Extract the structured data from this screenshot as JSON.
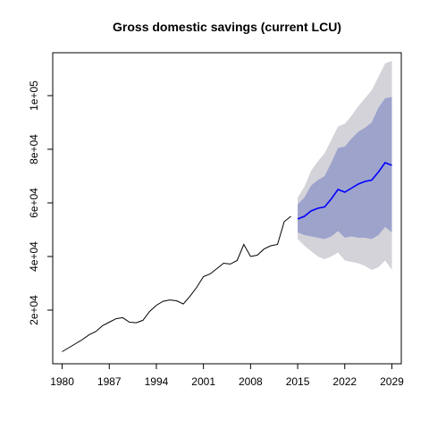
{
  "chart_data": {
    "type": "line",
    "title": "Gross domestic savings (current LCU)",
    "xlabel": "",
    "ylabel": "",
    "xlim": [
      1978.6,
      2030.4
    ],
    "ylim": [
      0,
      116000
    ],
    "x_ticks": [
      1980,
      1987,
      1994,
      2001,
      2008,
      2015,
      2022,
      2029
    ],
    "x_tick_labels": [
      "1980",
      "1987",
      "1994",
      "2001",
      "2008",
      "2015",
      "2022",
      "2029"
    ],
    "y_ticks": [
      20000,
      40000,
      60000,
      80000,
      100000
    ],
    "y_tick_labels": [
      "2e+04",
      "4e+04",
      "6e+04",
      "8e+04",
      "1e+05"
    ],
    "grid": false,
    "legend": "none",
    "series": [
      {
        "role": "history",
        "color": "#000000",
        "x": [
          1980,
          1981,
          1982,
          1983,
          1984,
          1985,
          1986,
          1987,
          1988,
          1989,
          1990,
          1991,
          1992,
          1993,
          1994,
          1995,
          1996,
          1997,
          1998,
          1999,
          2000,
          2001,
          2002,
          2003,
          2004,
          2005,
          2006,
          2007,
          2008,
          2009,
          2010,
          2011,
          2012,
          2013,
          2014
        ],
        "y": [
          4500,
          6000,
          7500,
          9000,
          10800,
          12000,
          14200,
          15500,
          16800,
          17200,
          15500,
          15300,
          16200,
          19500,
          21800,
          23300,
          23800,
          23500,
          22300,
          25200,
          28500,
          32500,
          33500,
          35500,
          37500,
          37200,
          38500,
          44500,
          40000,
          40500,
          42800,
          44000,
          44500,
          53000,
          55000
        ]
      },
      {
        "role": "forecast-mean",
        "color": "#0000ff",
        "x": [
          2015,
          2016,
          2017,
          2018,
          2019,
          2020,
          2021,
          2022,
          2023,
          2024,
          2025,
          2026,
          2027,
          2028,
          2029
        ],
        "y": [
          54000,
          55000,
          57000,
          58000,
          58500,
          61500,
          65000,
          64000,
          65500,
          67000,
          68000,
          68500,
          71500,
          75000,
          74000
        ]
      }
    ],
    "bands": [
      {
        "level": "95%",
        "color": "#d3d3d9",
        "x": [
          2015,
          2016,
          2017,
          2018,
          2019,
          2020,
          2021,
          2022,
          2023,
          2024,
          2025,
          2026,
          2027,
          2028,
          2029
        ],
        "lower": [
          46500,
          44000,
          42000,
          40000,
          39000,
          40000,
          41500,
          38500,
          38000,
          37500,
          36500,
          35000,
          36000,
          38500,
          35000
        ],
        "upper": [
          62000,
          66000,
          72000,
          75500,
          78500,
          83500,
          88500,
          89500,
          92500,
          96000,
          99000,
          102000,
          107000,
          112000,
          113000
        ]
      },
      {
        "level": "80%",
        "color": "#9ea3cc",
        "x": [
          2015,
          2016,
          2017,
          2018,
          2019,
          2020,
          2021,
          2022,
          2023,
          2024,
          2025,
          2026,
          2027,
          2028,
          2029
        ],
        "lower": [
          49000,
          48000,
          47500,
          47000,
          46500,
          47500,
          49500,
          47000,
          47500,
          47000,
          47000,
          46500,
          48000,
          51000,
          49000
        ],
        "upper": [
          59500,
          62000,
          66500,
          68500,
          70000,
          75000,
          80500,
          81000,
          84000,
          86500,
          88000,
          90000,
          95500,
          99000,
          99500
        ]
      }
    ]
  }
}
